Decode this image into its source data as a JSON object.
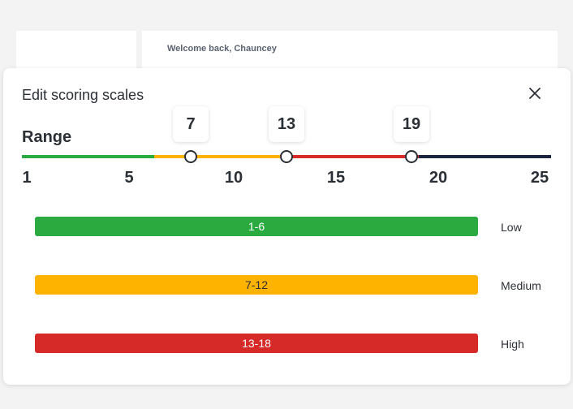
{
  "header": {
    "welcome": "Welcome back, Chauncey"
  },
  "modal": {
    "title": "Edit scoring scales",
    "range_label": "Range",
    "range": {
      "min": 1,
      "max": 25
    },
    "ticks": [
      "1",
      "5",
      "10",
      "15",
      "20",
      "25"
    ],
    "handles": [
      "7",
      "13",
      "19"
    ],
    "scales": [
      {
        "label": "1-6",
        "name": "Low",
        "color": "#2aaa3f",
        "text_color": "#ffffff"
      },
      {
        "label": "7-12",
        "name": "Medium",
        "color": "#fdb300",
        "text_color": "#2b2f36"
      },
      {
        "label": "13-18",
        "name": "High",
        "color": "#d52a28",
        "text_color": "#ffffff"
      }
    ],
    "top_segment_color": "#1c2444"
  }
}
